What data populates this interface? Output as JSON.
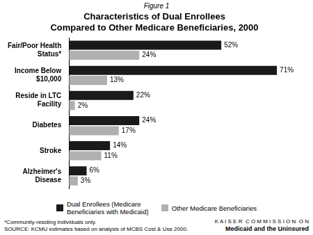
{
  "chart_data": {
    "type": "bar",
    "orientation": "horizontal",
    "title": "Characteristics of Dual Enrollees\nCompared to Other Medicare Beneficiaries, 2000",
    "categories": [
      "Fair/Poor Health\nStatus*",
      "Income Below\n$10,000",
      "Reside in LTC\nFacility",
      "Diabetes",
      "Stroke",
      "Alzheimer's\nDisease"
    ],
    "series": [
      {
        "name": "Dual Enrollees (Medicare\nBeneficiaries with Medicaid)",
        "color": "#1a1a1a",
        "values": [
          52,
          71,
          22,
          24,
          14,
          6
        ],
        "value_labels": [
          "52%",
          "71%",
          "22%",
          "24%",
          "14%",
          "6%"
        ]
      },
      {
        "name": "Other Medicare Beneficiaries",
        "color": "#b0b0b0",
        "values": [
          24,
          13,
          2,
          17,
          11,
          3
        ],
        "value_labels": [
          "24%",
          "13%",
          "2%",
          "17%",
          "11%",
          "3%"
        ]
      }
    ],
    "xlim": [
      0,
      80
    ],
    "data_labels": true,
    "tick_labels": "y",
    "grid": false,
    "legend": "bottom",
    "annotations": [
      "Figure 1",
      "*Community-residing individuals only.",
      "SOURCE: KCMU estimates based on analysis of MCBS Cost & Use 2000.",
      "K A I S E R  C O M M I S S I O N  O N",
      "Medicaid and the Uninsured"
    ]
  }
}
